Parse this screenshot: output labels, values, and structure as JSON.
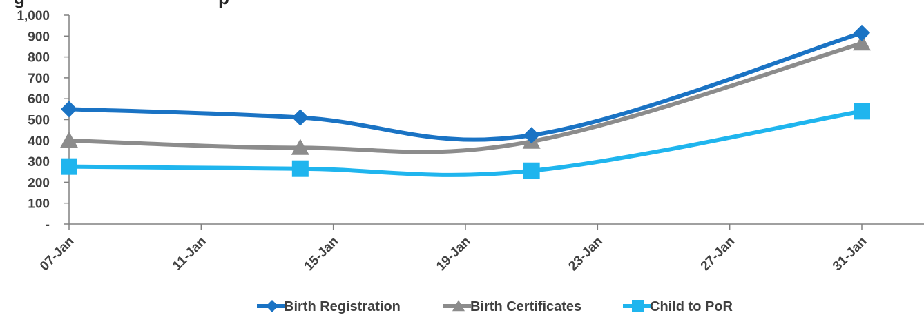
{
  "chart_data": {
    "type": "line",
    "x": [
      "07-Jan",
      "14-Jan",
      "21-Jan",
      "31-Jan"
    ],
    "x_ticks": [
      "07-Jan",
      "11-Jan",
      "15-Jan",
      "19-Jan",
      "23-Jan",
      "27-Jan",
      "31-Jan"
    ],
    "y_ticks": [
      "-",
      "100",
      "200",
      "300",
      "400",
      "500",
      "600",
      "700",
      "800",
      "900",
      "1,000"
    ],
    "ylim": [
      0,
      1000
    ],
    "grid": false,
    "legend_position": "bottom",
    "series": [
      {
        "name": "Birth Registration",
        "values": [
          550,
          510,
          425,
          915
        ],
        "color": "#1a73c4",
        "marker": "diamond"
      },
      {
        "name": "Birth Certificates",
        "values": [
          400,
          365,
          395,
          865
        ],
        "color": "#8c8c8c",
        "marker": "triangle"
      },
      {
        "name": "Child to PoR",
        "values": [
          275,
          265,
          255,
          540
        ],
        "color": "#1fb5ee",
        "marker": "square"
      }
    ]
  }
}
